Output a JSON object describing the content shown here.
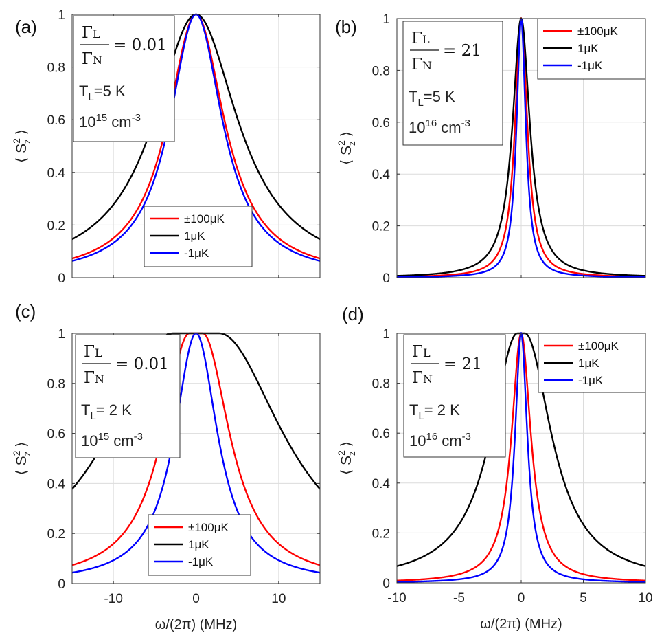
{
  "figure": {
    "xlabel": "ω/(2π)  (MHz)",
    "ylabel": "⟨ S",
    "ylabel_sup": "2",
    "ylabel_sub": "z",
    "ylabel_end": " ⟩"
  },
  "chart_data": [
    {
      "type": "line",
      "panel": "(a)",
      "xlim": [
        -15,
        15
      ],
      "ylim": [
        0,
        1
      ],
      "xticks": [
        -10,
        0,
        10
      ],
      "yticks": [
        0,
        0.2,
        0.4,
        0.6,
        0.8,
        1
      ],
      "ytick_labels": [
        "0",
        "0.2",
        "0.4",
        "0.6",
        "0.8",
        "1"
      ],
      "show_xtick_labels": false,
      "show_xlabel": false,
      "grid": true,
      "legend_position": "bottom-center",
      "annotation": {
        "ratio_num": "Γ",
        "ratio_num_sub": "L",
        "ratio_den": "Γ",
        "ratio_den_sub": "N",
        "ratio_val": "= 0.01",
        "temp": "T",
        "temp_sub": "L",
        "temp_val": "=5 K",
        "density_base": "10",
        "density_exp": "15",
        "density_unit": " cm",
        "density_unit_exp": "-3"
      },
      "series": [
        {
          "name": "±100μK",
          "color": "#ff0000",
          "lineshape": "lorentzian",
          "peak": 1.0,
          "hwhm": 4.2,
          "flat_top": 0.0
        },
        {
          "name": "1μK",
          "color": "#000000",
          "lineshape": "lorentzian",
          "peak": 1.0,
          "hwhm": 6.2,
          "flat_top": 0.0
        },
        {
          "name": "-1μK",
          "color": "#0000ff",
          "lineshape": "lorentzian",
          "peak": 1.0,
          "hwhm": 3.9,
          "flat_top": 0.0
        }
      ]
    },
    {
      "type": "line",
      "panel": "(b)",
      "xlim": [
        -10,
        10
      ],
      "ylim": [
        0,
        1
      ],
      "xticks": [
        -10,
        -5,
        0,
        5,
        10
      ],
      "yticks": [
        0,
        0.2,
        0.4,
        0.6,
        0.8,
        1
      ],
      "ytick_labels": [
        "0",
        "0.2",
        "0.4",
        "0.6",
        "0.8",
        "1"
      ],
      "show_xtick_labels": false,
      "show_xlabel": false,
      "grid": true,
      "legend_position": "top-right",
      "annotation": {
        "ratio_num": "Γ",
        "ratio_num_sub": "L",
        "ratio_den": "Γ",
        "ratio_den_sub": "N",
        "ratio_val": "= 21",
        "temp": "T",
        "temp_sub": "L",
        "temp_val": "=5 K",
        "density_base": "10",
        "density_exp": "16",
        "density_unit": " cm",
        "density_unit_exp": "-3"
      },
      "series": [
        {
          "name": "±100μK",
          "color": "#ff0000",
          "lineshape": "lorentzian",
          "peak": 1.0,
          "hwhm": 0.6,
          "flat_top": 0.0
        },
        {
          "name": "1μK",
          "color": "#000000",
          "lineshape": "lorentzian",
          "peak": 1.0,
          "hwhm": 0.85,
          "flat_top": 0.0
        },
        {
          "name": "-1μK",
          "color": "#0000ff",
          "lineshape": "lorentzian",
          "peak": 1.0,
          "hwhm": 0.45,
          "flat_top": 0.0
        }
      ]
    },
    {
      "type": "line",
      "panel": "(c)",
      "xlim": [
        -15,
        15
      ],
      "ylim": [
        0,
        1
      ],
      "xticks": [
        -10,
        0,
        10
      ],
      "yticks": [
        0,
        0.2,
        0.4,
        0.6,
        0.8,
        1
      ],
      "ytick_labels": [
        "0",
        "0.2",
        "0.4",
        "0.6",
        "0.8",
        "1"
      ],
      "show_xtick_labels": true,
      "show_xlabel": true,
      "grid": true,
      "legend_position": "bottom-center",
      "annotation": {
        "ratio_num": "Γ",
        "ratio_num_sub": "L",
        "ratio_den": "Γ",
        "ratio_den_sub": "N",
        "ratio_val": "= 0.01",
        "temp": "T",
        "temp_sub": "L",
        "temp_val": "= 2 K",
        "density_base": "10",
        "density_exp": "15",
        "density_unit": " cm",
        "density_unit_exp": "-3"
      },
      "series": [
        {
          "name": "±100μK",
          "color": "#ff0000",
          "lineshape": "lorentzian",
          "peak": 1.0,
          "hwhm": 4.0,
          "flat_top": 0.8
        },
        {
          "name": "1μK",
          "color": "#000000",
          "lineshape": "lorentzian",
          "peak": 1.0,
          "hwhm": 9.5,
          "flat_top": 2.8
        },
        {
          "name": "-1μK",
          "color": "#0000ff",
          "lineshape": "lorentzian",
          "peak": 1.0,
          "hwhm": 3.2,
          "flat_top": 0.0
        }
      ]
    },
    {
      "type": "line",
      "panel": "(d)",
      "xlim": [
        -10,
        10
      ],
      "ylim": [
        0,
        1
      ],
      "xticks": [
        -10,
        -5,
        0,
        5,
        10
      ],
      "yticks": [
        0,
        0.2,
        0.4,
        0.6,
        0.8,
        1
      ],
      "ytick_labels": [
        "0",
        "0.2",
        "0.4",
        "0.6",
        "0.8",
        "1"
      ],
      "show_xtick_labels": true,
      "show_xlabel": true,
      "grid": true,
      "legend_position": "top-right",
      "annotation": {
        "ratio_num": "Γ",
        "ratio_num_sub": "L",
        "ratio_den": "Γ",
        "ratio_den_sub": "N",
        "ratio_val": "= 21",
        "temp": "T",
        "temp_sub": "L",
        "temp_val": "= 2 K",
        "density_base": "10",
        "density_exp": "16",
        "density_unit": " cm",
        "density_unit_exp": "-3"
      },
      "series": [
        {
          "name": "±100μK",
          "color": "#ff0000",
          "lineshape": "lorentzian",
          "peak": 1.0,
          "hwhm": 0.95,
          "flat_top": 0.0
        },
        {
          "name": "1μK",
          "color": "#000000",
          "lineshape": "lorentzian",
          "peak": 1.0,
          "hwhm": 2.6,
          "flat_top": 0.3
        },
        {
          "name": "-1μK",
          "color": "#0000ff",
          "lineshape": "lorentzian",
          "peak": 1.0,
          "hwhm": 0.6,
          "flat_top": 0.0
        }
      ]
    }
  ]
}
